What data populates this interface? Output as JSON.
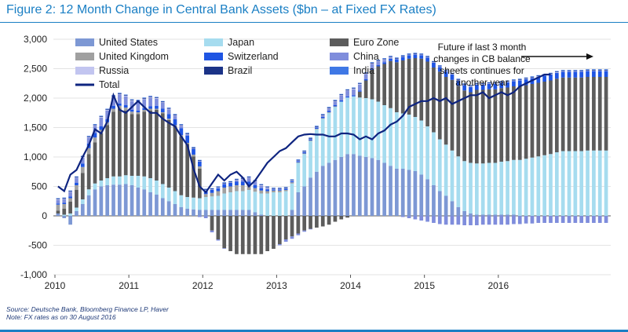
{
  "title": "Figure 2: 12 Month Change in Central Bank Assets ($bn – at Fixed FX Rates)",
  "source": "Source: Deutsche Bank, Bloomberg Finance LP, Haver",
  "note": "Note: FX rates as on 30 August 2016",
  "annotation": [
    "Future if last 3 month",
    "changes in CB balance",
    "sheets continues for",
    "another year"
  ],
  "colors": {
    "United States": "#7d98d4",
    "Japan": "#a6dcef",
    "Euro Zone": "#5c5c5c",
    "United Kingdom": "#a0a0a0",
    "Switzerland": "#1f55e3",
    "China": "#7f8ddc",
    "Russia": "#c2c5f0",
    "Brazil": "#1b3387",
    "India": "#3f78e5",
    "Total": "#0e2480",
    "title": "#1a7fc4"
  },
  "chart_data": {
    "type": "bar",
    "stacked": true,
    "start": "2010-01",
    "frequency": "monthly",
    "ylim": [
      -1000,
      3000
    ],
    "yticks": [
      -1000,
      -500,
      0,
      500,
      1000,
      1500,
      2000,
      2500,
      3000
    ],
    "xticks": [
      "2010",
      "2011",
      "2012",
      "2013",
      "2014",
      "2015",
      "2016"
    ],
    "legend": [
      "United States",
      "Japan",
      "Euro Zone",
      "United Kingdom",
      "Switzerland",
      "China",
      "Russia",
      "Brazil",
      "India",
      "Total"
    ],
    "legend_position": "top",
    "series": [
      {
        "name": "United States",
        "values": [
          40,
          -40,
          -150,
          80,
          200,
          350,
          450,
          500,
          520,
          530,
          530,
          540,
          520,
          480,
          450,
          400,
          360,
          300,
          250,
          200,
          150,
          120,
          110,
          100,
          100,
          100,
          100,
          100,
          100,
          100,
          100,
          100,
          60,
          20,
          0,
          0,
          0,
          0,
          100,
          400,
          500,
          650,
          750,
          850,
          900,
          950,
          1000,
          1050,
          1050,
          1020,
          1000,
          980,
          950,
          900,
          850,
          800,
          800,
          780,
          760,
          700,
          620,
          520,
          420,
          340,
          250,
          150,
          80,
          40,
          20,
          20,
          20,
          20,
          20,
          20,
          20,
          0,
          0,
          0,
          0,
          0,
          0,
          0,
          0,
          0,
          0,
          0,
          0,
          0,
          0,
          0
        ]
      },
      {
        "name": "Japan",
        "values": [
          0,
          20,
          40,
          60,
          80,
          100,
          100,
          100,
          120,
          140,
          140,
          150,
          160,
          200,
          220,
          240,
          240,
          240,
          230,
          220,
          200,
          200,
          200,
          200,
          220,
          230,
          240,
          280,
          300,
          320,
          320,
          340,
          350,
          360,
          380,
          400,
          400,
          420,
          450,
          500,
          550,
          620,
          720,
          800,
          850,
          900,
          940,
          960,
          980,
          990,
          1000,
          1000,
          990,
          980,
          980,
          960,
          940,
          940,
          920,
          920,
          900,
          900,
          880,
          870,
          860,
          860,
          850,
          860,
          870,
          870,
          880,
          880,
          900,
          910,
          930,
          950,
          970,
          990,
          1010,
          1030,
          1050,
          1080,
          1100,
          1100,
          1100,
          1100,
          1110,
          1110,
          1110,
          1110
        ]
      },
      {
        "name": "Euro Zone",
        "values": [
          50,
          100,
          200,
          300,
          450,
          600,
          700,
          800,
          900,
          1100,
          1150,
          1100,
          1050,
          1050,
          1100,
          1150,
          1200,
          1200,
          1150,
          1100,
          1000,
          900,
          700,
          500,
          0,
          -250,
          -400,
          -550,
          -600,
          -650,
          -650,
          -650,
          -650,
          -650,
          -600,
          -560,
          -480,
          -400,
          -350,
          -300,
          -250,
          -220,
          -200,
          -180,
          -150,
          -100,
          -60,
          -30,
          0,
          100,
          300,
          500,
          600,
          700,
          800,
          850,
          900,
          950,
          1000,
          1050,
          1100,
          1100,
          1150,
          1150,
          1200,
          1200,
          1200,
          1200,
          1250,
          1250,
          1250,
          1250,
          1250,
          1250,
          1250,
          1250,
          1250,
          1250,
          1250,
          1250,
          1250,
          1250,
          1250,
          1250,
          1250,
          1250,
          1250,
          1250,
          1250,
          1250
        ]
      },
      {
        "name": "United Kingdom",
        "values": [
          100,
          80,
          60,
          80,
          100,
          100,
          80,
          60,
          50,
          50,
          50,
          50,
          40,
          30,
          30,
          30,
          20,
          20,
          20,
          20,
          20,
          20,
          30,
          40,
          50,
          60,
          80,
          100,
          100,
          100,
          100,
          80,
          60,
          50,
          40,
          30,
          30,
          20,
          20,
          10,
          10,
          10,
          10,
          10,
          10,
          10,
          0,
          0,
          0,
          0,
          0,
          0,
          0,
          0,
          0,
          0,
          0,
          0,
          0,
          0,
          0,
          0,
          0,
          0,
          0,
          0,
          0,
          0,
          0,
          0,
          0,
          0,
          0,
          0,
          0,
          0,
          0,
          0,
          0,
          0,
          0,
          0,
          0,
          0,
          0,
          0,
          0,
          0,
          0,
          0
        ]
      },
      {
        "name": "Switzerland",
        "values": [
          20,
          20,
          30,
          40,
          60,
          80,
          80,
          60,
          50,
          50,
          40,
          40,
          30,
          30,
          30,
          40,
          50,
          60,
          80,
          100,
          120,
          120,
          100,
          80,
          60,
          50,
          50,
          60,
          60,
          60,
          60,
          60,
          50,
          40,
          30,
          20,
          20,
          20,
          20,
          20,
          20,
          20,
          20,
          20,
          20,
          20,
          20,
          20,
          20,
          20,
          20,
          20,
          20,
          30,
          40,
          50,
          60,
          60,
          60,
          60,
          70,
          80,
          80,
          90,
          90,
          90,
          90,
          90,
          90,
          90,
          90,
          90,
          90,
          90,
          90,
          100,
          100,
          100,
          100,
          100,
          100,
          100,
          100,
          100,
          100,
          100,
          100,
          100,
          100,
          100
        ]
      },
      {
        "name": "China",
        "values": [
          60,
          60,
          70,
          80,
          100,
          100,
          120,
          150,
          150,
          150,
          150,
          150,
          150,
          150,
          150,
          150,
          120,
          100,
          80,
          60,
          40,
          20,
          0,
          -20,
          -40,
          -30,
          -20,
          -10,
          0,
          20,
          40,
          60,
          60,
          40,
          20,
          0,
          -20,
          -40,
          -40,
          -30,
          -20,
          -10,
          0,
          20,
          40,
          60,
          80,
          90,
          100,
          100,
          90,
          80,
          60,
          40,
          20,
          0,
          -20,
          -40,
          -60,
          -80,
          -100,
          -120,
          -140,
          -150,
          -150,
          -150,
          -160,
          -160,
          -160,
          -150,
          -150,
          -150,
          -150,
          -150,
          -140,
          -140,
          -130,
          -130,
          -120,
          -120,
          -120,
          -120,
          -120,
          -120,
          -120,
          -120,
          -120,
          -120,
          -120,
          -120
        ]
      },
      {
        "name": "Russia",
        "values": [
          10,
          10,
          10,
          10,
          10,
          10,
          10,
          10,
          10,
          10,
          10,
          10,
          10,
          10,
          10,
          10,
          10,
          10,
          10,
          10,
          10,
          10,
          10,
          10,
          10,
          10,
          10,
          10,
          10,
          10,
          10,
          10,
          10,
          10,
          10,
          10,
          10,
          10,
          10,
          10,
          10,
          10,
          10,
          10,
          10,
          10,
          10,
          10,
          10,
          10,
          10,
          10,
          10,
          10,
          10,
          10,
          10,
          10,
          10,
          10,
          10,
          10,
          10,
          10,
          10,
          10,
          10,
          10,
          10,
          10,
          10,
          10,
          10,
          10,
          10,
          10,
          10,
          10,
          10,
          10,
          10,
          10,
          10,
          10,
          10,
          10,
          10,
          10,
          10,
          10
        ]
      },
      {
        "name": "Brazil",
        "values": [
          10,
          10,
          10,
          10,
          10,
          10,
          10,
          10,
          10,
          10,
          10,
          10,
          10,
          10,
          10,
          10,
          10,
          10,
          10,
          10,
          10,
          10,
          10,
          10,
          10,
          10,
          10,
          10,
          10,
          10,
          10,
          10,
          10,
          10,
          10,
          10,
          10,
          10,
          10,
          10,
          10,
          10,
          10,
          10,
          10,
          10,
          10,
          10,
          10,
          10,
          10,
          10,
          10,
          10,
          10,
          10,
          10,
          10,
          10,
          10,
          10,
          10,
          10,
          10,
          10,
          10,
          10,
          10,
          10,
          10,
          10,
          10,
          10,
          10,
          10,
          10,
          10,
          10,
          10,
          10,
          10,
          10,
          10,
          10,
          10,
          10,
          10,
          10,
          10,
          10
        ]
      },
      {
        "name": "India",
        "values": [
          10,
          10,
          10,
          10,
          10,
          10,
          10,
          10,
          10,
          10,
          10,
          10,
          10,
          10,
          10,
          10,
          10,
          10,
          10,
          10,
          10,
          10,
          10,
          10,
          10,
          10,
          10,
          10,
          10,
          10,
          10,
          10,
          10,
          10,
          10,
          10,
          10,
          10,
          10,
          10,
          10,
          10,
          10,
          10,
          10,
          10,
          10,
          10,
          10,
          10,
          10,
          10,
          10,
          10,
          10,
          10,
          10,
          10,
          10,
          10,
          10,
          10,
          10,
          10,
          10,
          10,
          10,
          10,
          10,
          10,
          10,
          10,
          10,
          10,
          10,
          10,
          10,
          10,
          10,
          10,
          10,
          10,
          10,
          10,
          10,
          10,
          10,
          10,
          10,
          10
        ]
      }
    ],
    "total": [
      500,
      420,
      700,
      780,
      1000,
      1200,
      1470,
      1400,
      1600,
      2050,
      1800,
      1750,
      1850,
      1950,
      1850,
      1750,
      1750,
      1650,
      1580,
      1520,
      1350,
      1200,
      800,
      500,
      400,
      550,
      700,
      600,
      700,
      750,
      650,
      500,
      600,
      750,
      900,
      1000,
      1100,
      1150,
      1250,
      1350,
      1380,
      1390,
      1380,
      1380,
      1350,
      1350,
      1400,
      1400,
      1380,
      1300,
      1350,
      1300,
      1400,
      1450,
      1550,
      1600,
      1700,
      1850,
      1900,
      1950,
      1950,
      2000,
      1950,
      2000,
      1900,
      1950,
      2000,
      2050,
      2050,
      2100,
      2000,
      2050,
      2100,
      2050,
      2100,
      2200,
      2250,
      2300,
      2350,
      2400,
      2400,
      2400,
      2350,
      2400,
      2400,
      2400,
      2400,
      2400,
      2400,
      2400
    ],
    "forecast_from_index": 80
  }
}
